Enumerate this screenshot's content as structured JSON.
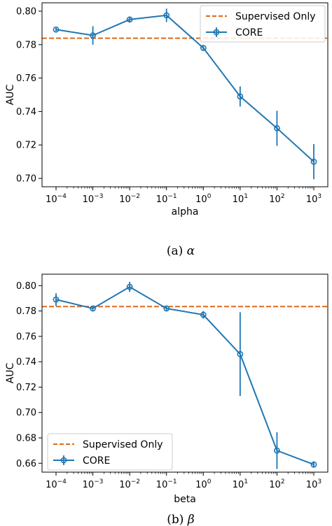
{
  "chart_data": [
    {
      "type": "line",
      "caption_label": "(a)",
      "caption_symbol": "α",
      "xlabel": "alpha",
      "ylabel": "AUC",
      "xscale": "log",
      "x": [
        0.0001,
        0.001,
        0.01,
        0.1,
        1,
        10,
        100,
        1000
      ],
      "xtick_bases": [
        "10",
        "10",
        "10",
        "10",
        "10",
        "10",
        "10",
        "10"
      ],
      "xtick_exponents": [
        "−4",
        "−3",
        "−2",
        "−1",
        "0",
        "1",
        "2",
        "3"
      ],
      "ylim": [
        0.695,
        0.805
      ],
      "yticks": [
        0.7,
        0.72,
        0.74,
        0.76,
        0.78,
        0.8
      ],
      "ytick_labels": [
        "0.70",
        "0.72",
        "0.74",
        "0.76",
        "0.78",
        "0.80"
      ],
      "series": [
        {
          "name": "CORE",
          "color": "#1f77b4",
          "values": [
            0.789,
            0.7855,
            0.795,
            0.7975,
            0.778,
            0.749,
            0.73,
            0.71
          ],
          "errors": [
            0.001,
            0.0055,
            0.0015,
            0.004,
            0.001,
            0.006,
            0.0105,
            0.0105
          ]
        }
      ],
      "reference": {
        "name": "Supervised Only",
        "value": 0.7838,
        "color": "#dd6a1a"
      },
      "legend": "top-right"
    },
    {
      "type": "line",
      "caption_label": "(b)",
      "caption_symbol": "β",
      "xlabel": "beta",
      "ylabel": "AUC",
      "xscale": "log",
      "x": [
        0.0001,
        0.001,
        0.01,
        0.1,
        1,
        10,
        100,
        1000
      ],
      "xtick_bases": [
        "10",
        "10",
        "10",
        "10",
        "10",
        "10",
        "10",
        "10"
      ],
      "xtick_exponents": [
        "−4",
        "−3",
        "−2",
        "−1",
        "0",
        "1",
        "2",
        "3"
      ],
      "ylim": [
        0.653,
        0.809
      ],
      "yticks": [
        0.66,
        0.68,
        0.7,
        0.72,
        0.74,
        0.76,
        0.78,
        0.8
      ],
      "ytick_labels": [
        "0.66",
        "0.68",
        "0.70",
        "0.72",
        "0.74",
        "0.76",
        "0.78",
        "0.80"
      ],
      "series": [
        {
          "name": "CORE",
          "color": "#1f77b4",
          "values": [
            0.789,
            0.782,
            0.799,
            0.782,
            0.777,
            0.746,
            0.67,
            0.659
          ],
          "errors": [
            0.005,
            0.0015,
            0.004,
            0.0015,
            0.003,
            0.033,
            0.0145,
            0.0025
          ]
        }
      ],
      "reference": {
        "name": "Supervised Only",
        "value": 0.7835,
        "color": "#dd6a1a"
      },
      "legend": "bottom-left"
    }
  ]
}
